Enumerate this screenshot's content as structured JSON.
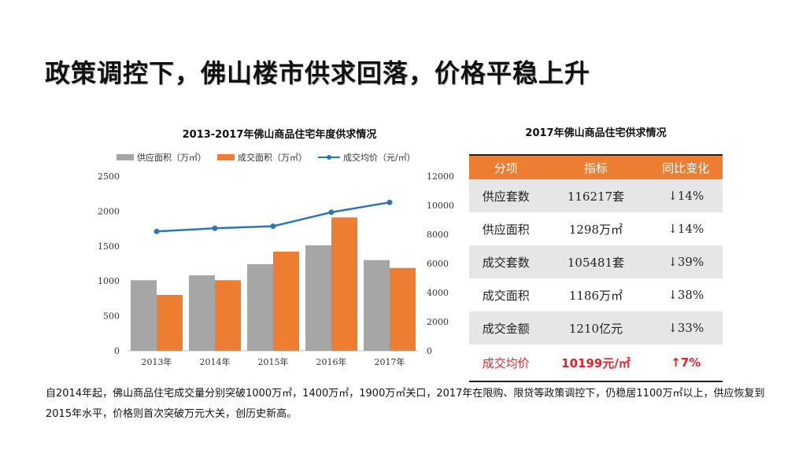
{
  "page_title": "政策调控下，佛山楼市供求回落，价格平稳上升",
  "chart_data": {
    "type": "bar+line",
    "title": "2013-2017年佛山商品住宅年度供求情况",
    "categories": [
      "2013年",
      "2014年",
      "2015年",
      "2016年",
      "2017年"
    ],
    "series": [
      {
        "name": "供应面积（万㎡）",
        "type": "bar",
        "axis": "left",
        "color": "#a6a6a6",
        "values": [
          1010,
          1080,
          1240,
          1510,
          1298
        ]
      },
      {
        "name": "成交面积（万㎡）",
        "type": "bar",
        "axis": "left",
        "color": "#ed7d31",
        "values": [
          800,
          1010,
          1420,
          1910,
          1186
        ]
      },
      {
        "name": "成交均价（元/㎡）",
        "type": "line",
        "axis": "right",
        "color": "#2e75b6",
        "values": [
          8200,
          8420,
          8560,
          9520,
          10199
        ]
      }
    ],
    "y_left": {
      "min": 0,
      "max": 2500,
      "ticks": [
        0,
        500,
        1000,
        1500,
        2000,
        2500
      ]
    },
    "y_right": {
      "min": 0,
      "max": 12000,
      "ticks": [
        0,
        2000,
        4000,
        6000,
        8000,
        10000,
        12000
      ]
    },
    "legend_position": "top",
    "grid": false
  },
  "table": {
    "title": "2017年佛山商品住宅供求情况",
    "headers": [
      "分项",
      "指标",
      "同比变化"
    ],
    "rows": [
      [
        "供应套数",
        "116217套",
        "↓14%"
      ],
      [
        "供应面积",
        "1298万㎡",
        "↓14%"
      ],
      [
        "成交套数",
        "105481套",
        "↓39%"
      ],
      [
        "成交面积",
        "1186万㎡",
        "↓38%"
      ],
      [
        "成交金额",
        "1210亿元",
        "↓33%"
      ],
      [
        "成交均价",
        "10199元/㎡",
        "↑7%"
      ]
    ]
  },
  "note": "自2014年起，佛山商品住宅成交量分别突破1000万㎡，1400万㎡，1900万㎡关口，2017年在限购、限贷等政策调控下，仍稳居1100万㎡以上，供应恢复到2015年水平，价格则首次突破万元大关，创历史新高。",
  "colors": {
    "accent": "#ed7d31",
    "gray": "#a6a6a6",
    "line": "#2e75b6",
    "highlight": "#e8202a"
  }
}
